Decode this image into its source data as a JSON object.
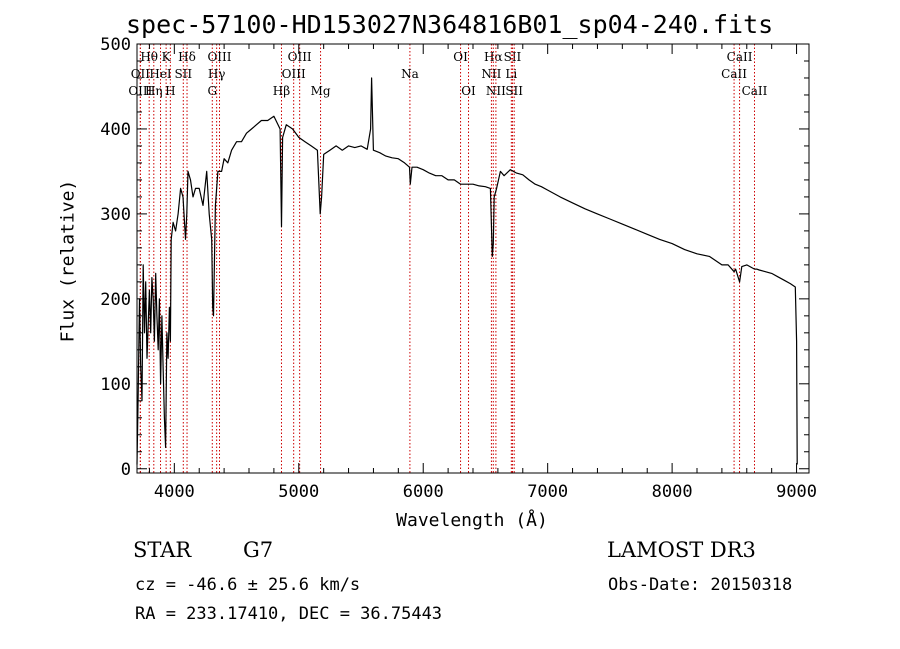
{
  "header": {
    "title": "spec-57100-HD153027N364816B01_sp04-240.fits"
  },
  "info": {
    "object_class": "STAR",
    "subclass": "G7",
    "survey": "LAMOST DR3",
    "redshift": "cz = -46.6 ± 25.6 km/s",
    "obs_date": "Obs-Date: 20150318",
    "coords": "RA = 233.17410, DEC =  36.75443"
  },
  "chart_data": {
    "type": "line",
    "title": "spec-57100-HD153027N364816B01_sp04-240.fits",
    "xlabel": "Wavelength (Å)",
    "ylabel": "Flux (relative)",
    "xlim": [
      3700,
      9100
    ],
    "ylim": [
      -5,
      500
    ],
    "xticks": [
      4000,
      5000,
      6000,
      7000,
      8000,
      9000
    ],
    "yticks": [
      0,
      100,
      200,
      300,
      400,
      500
    ],
    "grid": false,
    "line_color": "#000000",
    "marker_color": "#cc0000",
    "series": [
      {
        "x": [
          3700,
          3710,
          3720,
          3730,
          3740,
          3750,
          3760,
          3770,
          3780,
          3790,
          3800,
          3810,
          3820,
          3830,
          3840,
          3850,
          3860,
          3870,
          3880,
          3890,
          3900,
          3910,
          3920,
          3930,
          3935,
          3940,
          3950,
          3960,
          3968,
          3975,
          3990,
          4010,
          4030,
          4050,
          4070,
          4090,
          4100,
          4110,
          4130,
          4150,
          4170,
          4200,
          4230,
          4260,
          4280,
          4300,
          4308,
          4315,
          4330,
          4350,
          4380,
          4400,
          4430,
          4460,
          4500,
          4540,
          4580,
          4620,
          4660,
          4700,
          4750,
          4800,
          4850,
          4861,
          4870,
          4900,
          4950,
          5000,
          5050,
          5100,
          5150,
          5172,
          5183,
          5200,
          5250,
          5300,
          5350,
          5400,
          5450,
          5500,
          5550,
          5577,
          5585,
          5600,
          5650,
          5700,
          5750,
          5800,
          5850,
          5890,
          5896,
          5910,
          5950,
          6000,
          6050,
          6100,
          6150,
          6200,
          6250,
          6300,
          6350,
          6400,
          6450,
          6500,
          6540,
          6555,
          6563,
          6570,
          6590,
          6620,
          6650,
          6700,
          6750,
          6800,
          6850,
          6900,
          6950,
          7000,
          7100,
          7200,
          7300,
          7400,
          7500,
          7600,
          7700,
          7800,
          7900,
          8000,
          8100,
          8200,
          8300,
          8400,
          8450,
          8498,
          8510,
          8542,
          8560,
          8600,
          8662,
          8680,
          8700,
          8750,
          8800,
          8850,
          8900,
          8950,
          8990,
          9000,
          9005
        ],
        "y": [
          5,
          90,
          200,
          120,
          80,
          240,
          160,
          220,
          130,
          170,
          210,
          160,
          225,
          200,
          150,
          230,
          180,
          140,
          200,
          100,
          180,
          120,
          60,
          25,
          90,
          160,
          130,
          190,
          150,
          270,
          290,
          280,
          300,
          330,
          320,
          270,
          300,
          350,
          340,
          320,
          330,
          330,
          310,
          350,
          300,
          270,
          190,
          180,
          310,
          350,
          350,
          365,
          360,
          375,
          385,
          385,
          395,
          400,
          405,
          410,
          410,
          415,
          400,
          285,
          390,
          405,
          400,
          390,
          385,
          380,
          375,
          300,
          320,
          370,
          375,
          380,
          375,
          380,
          378,
          380,
          376,
          400,
          460,
          375,
          372,
          368,
          366,
          365,
          360,
          355,
          335,
          355,
          355,
          352,
          348,
          345,
          345,
          340,
          340,
          335,
          335,
          335,
          333,
          332,
          330,
          250,
          265,
          320,
          330,
          350,
          345,
          352,
          348,
          346,
          340,
          335,
          332,
          328,
          320,
          313,
          306,
          300,
          294,
          288,
          282,
          276,
          270,
          265,
          258,
          253,
          250,
          240,
          240,
          232,
          235,
          220,
          238,
          240,
          235,
          235,
          234,
          232,
          230,
          226,
          222,
          218,
          214,
          150,
          5
        ]
      }
    ],
    "line_markers": [
      {
        "label": "Hθ",
        "x": 3798,
        "row": 1
      },
      {
        "label": "OII",
        "x": 3727,
        "row": 2
      },
      {
        "label": "OIII",
        "x": 3727,
        "row": 3
      },
      {
        "label": "HeI",
        "x": 3889,
        "row": 2
      },
      {
        "label": "Hη",
        "x": 3835,
        "row": 3
      },
      {
        "label": "K",
        "x": 3934,
        "row": 1
      },
      {
        "label": "H",
        "x": 3968,
        "row": 3
      },
      {
        "label": "SII",
        "x": 4072,
        "row": 2
      },
      {
        "label": "Hδ",
        "x": 4102,
        "row": 1
      },
      {
        "label": "OIII",
        "x": 4363,
        "row": 1
      },
      {
        "label": "Hγ",
        "x": 4340,
        "row": 2
      },
      {
        "label": "G",
        "x": 4305,
        "row": 3
      },
      {
        "label": "OIII",
        "x": 5007,
        "row": 1
      },
      {
        "label": "OIII",
        "x": 4959,
        "row": 2
      },
      {
        "label": "Hβ",
        "x": 4861,
        "row": 3
      },
      {
        "label": "Mg",
        "x": 5175,
        "row": 3
      },
      {
        "label": "Na",
        "x": 5893,
        "row": 2
      },
      {
        "label": "OI",
        "x": 6300,
        "row": 1
      },
      {
        "label": "OI",
        "x": 6364,
        "row": 3
      },
      {
        "label": "Hα",
        "x": 6563,
        "row": 1
      },
      {
        "label": "NII",
        "x": 6548,
        "row": 2
      },
      {
        "label": "NII",
        "x": 6584,
        "row": 3
      },
      {
        "label": "SII",
        "x": 6717,
        "row": 1
      },
      {
        "label": "Li",
        "x": 6708,
        "row": 2
      },
      {
        "label": "SII",
        "x": 6731,
        "row": 3
      },
      {
        "label": "CaII",
        "x": 8542,
        "row": 1
      },
      {
        "label": "CaII",
        "x": 8498,
        "row": 2
      },
      {
        "label": "CaII",
        "x": 8662,
        "row": 3
      }
    ]
  }
}
